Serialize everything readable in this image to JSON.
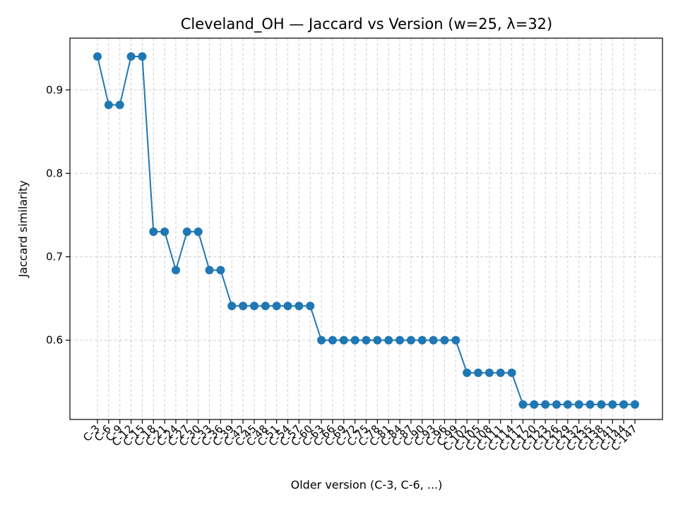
{
  "chart_data": {
    "type": "line",
    "title": "Cleveland_OH — Jaccard vs Version (w=25, λ=32)",
    "xlabel": "Older version (C-3, C-6, ...)",
    "ylabel": "Jaccard similarity",
    "ylim": [
      0.505,
      0.962
    ],
    "yticks": [
      "0.6",
      "0.7",
      "0.8",
      "0.9"
    ],
    "grid": true,
    "categories": [
      "C-3",
      "C-6",
      "C-9",
      "C-12",
      "C-15",
      "C-18",
      "C-21",
      "C-24",
      "C-27",
      "C-30",
      "C-33",
      "C-36",
      "C-39",
      "C-42",
      "C-45",
      "C-48",
      "C-51",
      "C-54",
      "C-57",
      "C-60",
      "C-63",
      "C-66",
      "C-69",
      "C-72",
      "C-75",
      "C-78",
      "C-81",
      "C-84",
      "C-87",
      "C-90",
      "C-93",
      "C-96",
      "C-99",
      "C-102",
      "C-105",
      "C-108",
      "C-111",
      "C-114",
      "C-117",
      "C-120",
      "C-123",
      "C-126",
      "C-129",
      "C-132",
      "C-135",
      "C-138",
      "C-141",
      "C-144",
      "C-147"
    ],
    "series": [
      {
        "color": "#1f77b4",
        "values": [
          0.94,
          0.882,
          0.882,
          0.94,
          0.94,
          0.73,
          0.73,
          0.684,
          0.73,
          0.73,
          0.684,
          0.684,
          0.641,
          0.641,
          0.641,
          0.641,
          0.641,
          0.641,
          0.641,
          0.641,
          0.6,
          0.6,
          0.6,
          0.6,
          0.6,
          0.6,
          0.6,
          0.6,
          0.6,
          0.6,
          0.6,
          0.6,
          0.6,
          0.561,
          0.561,
          0.561,
          0.561,
          0.561,
          0.523,
          0.523,
          0.523,
          0.523,
          0.523,
          0.523,
          0.523,
          0.523,
          0.523,
          0.523,
          0.523
        ]
      }
    ]
  }
}
